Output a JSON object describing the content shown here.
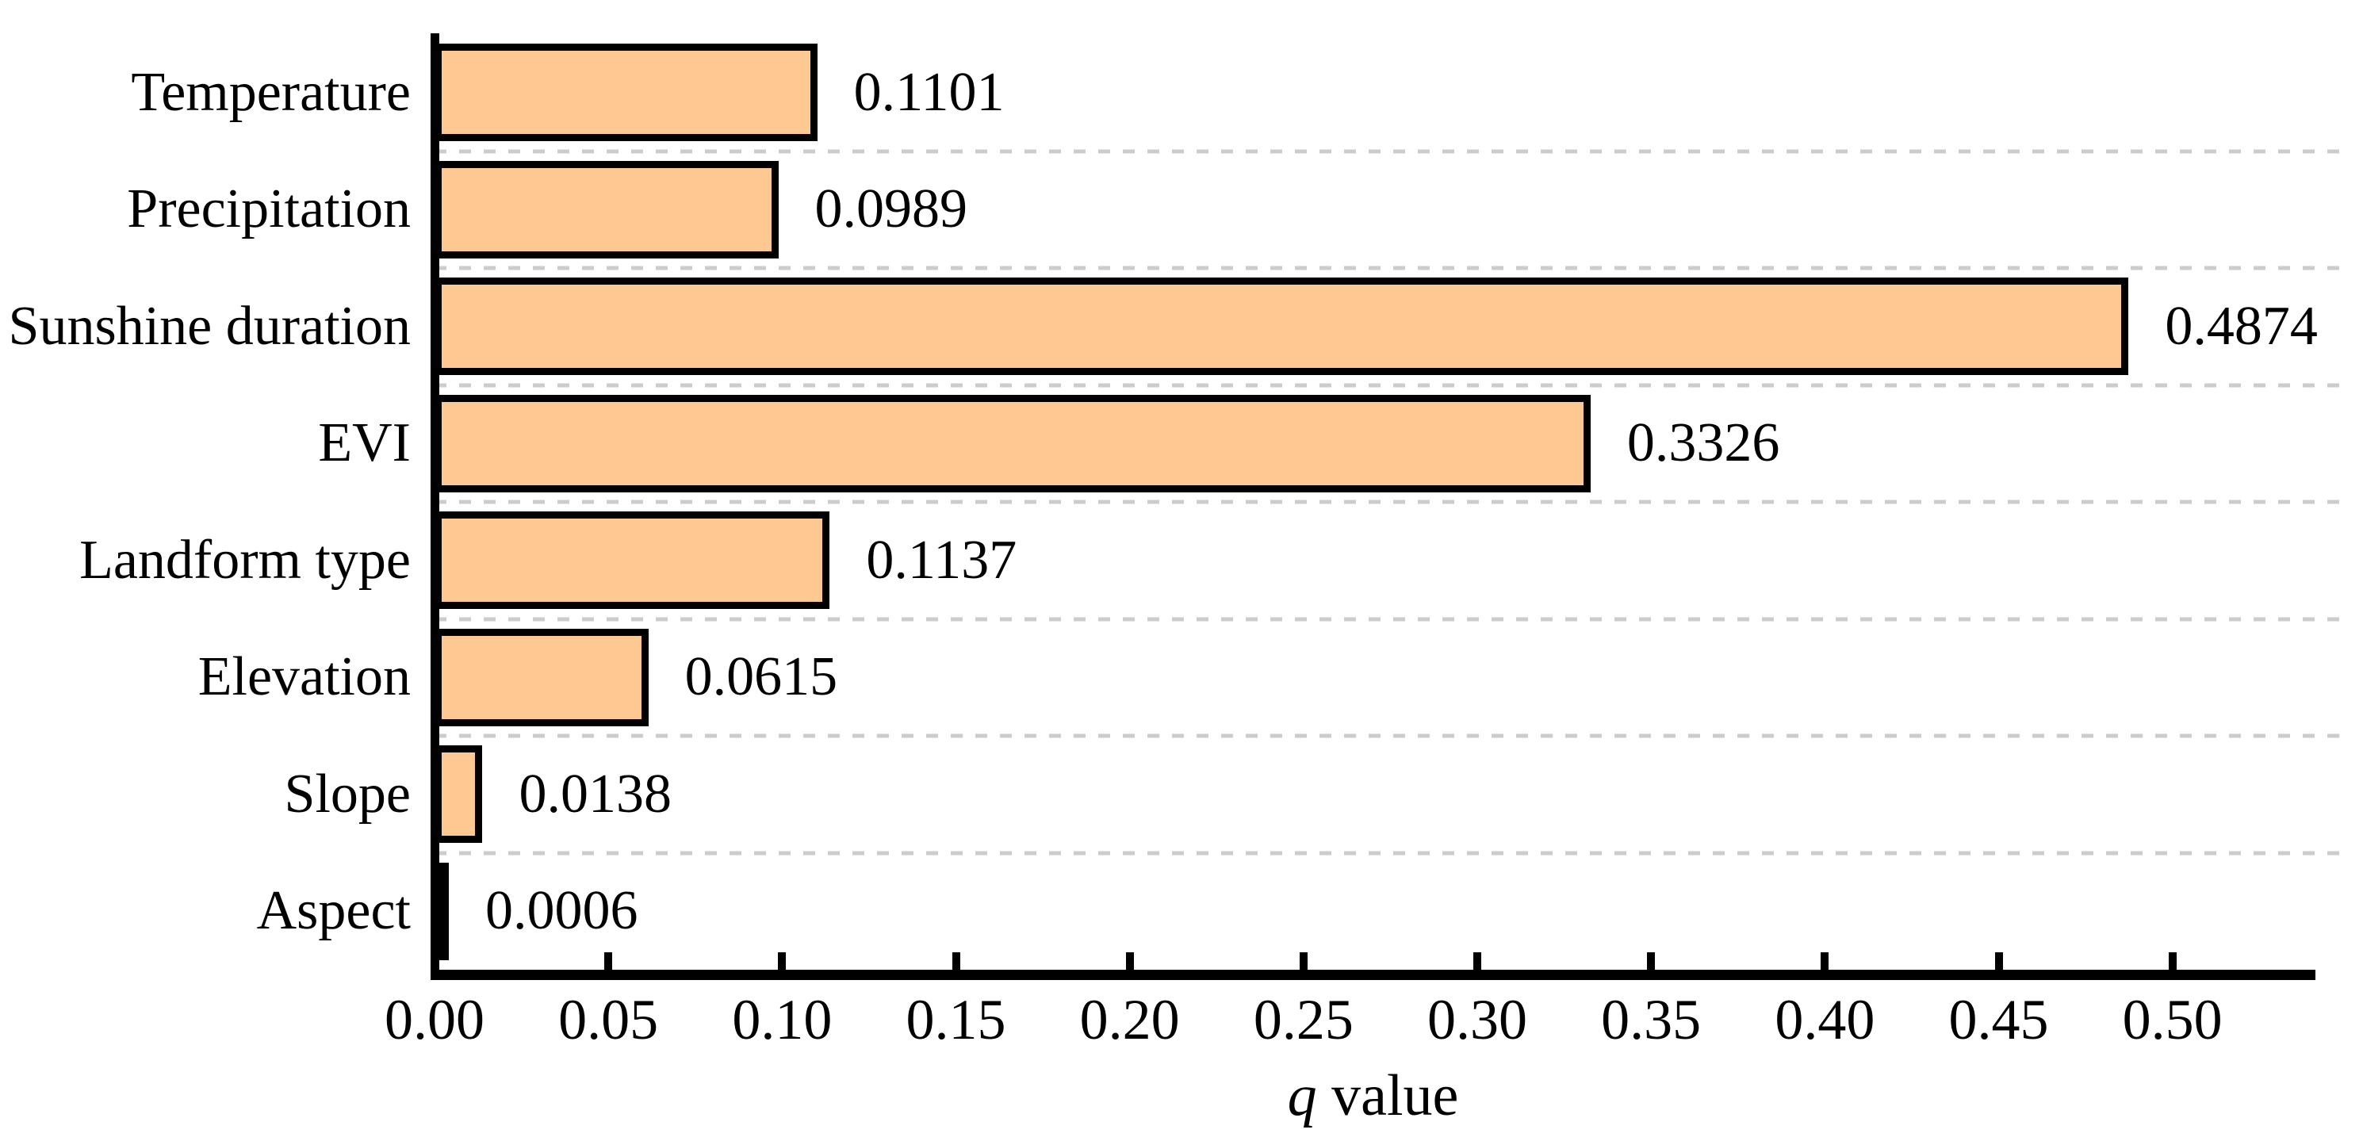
{
  "chart_data": {
    "type": "bar",
    "orientation": "horizontal",
    "title": "",
    "categories": [
      "Temperature",
      "Precipitation",
      "Sunshine duration",
      "EVI",
      "Landform type",
      "Elevation",
      "Slope",
      "Aspect"
    ],
    "values": [
      0.1101,
      0.0989,
      0.4874,
      0.3326,
      0.1137,
      0.0615,
      0.0138,
      0.0006
    ],
    "value_labels": [
      "0.1101",
      "0.0989",
      "0.4874",
      "0.3326",
      "0.1137",
      "0.0615",
      "0.0138",
      "0.0006"
    ],
    "xlabel_italic_part": "q",
    "xlabel_regular_part": " value",
    "xlabel": "q value",
    "ylabel": "",
    "xlim": [
      0,
      0.54
    ],
    "x_ticks": [
      0.0,
      0.05,
      0.1,
      0.15,
      0.2,
      0.25,
      0.3,
      0.35,
      0.4,
      0.45,
      0.5
    ],
    "x_tick_labels": [
      "0.00",
      "0.05",
      "0.10",
      "0.15",
      "0.20",
      "0.25",
      "0.30",
      "0.35",
      "0.40",
      "0.45",
      "0.50"
    ],
    "grid": "horizontal-dashed-between-categories",
    "legend": "none",
    "bar_fill_color": "#fdc892",
    "bar_border_color": "#000000",
    "gridline_color": "#cccccc",
    "axis_color": "#000000"
  }
}
